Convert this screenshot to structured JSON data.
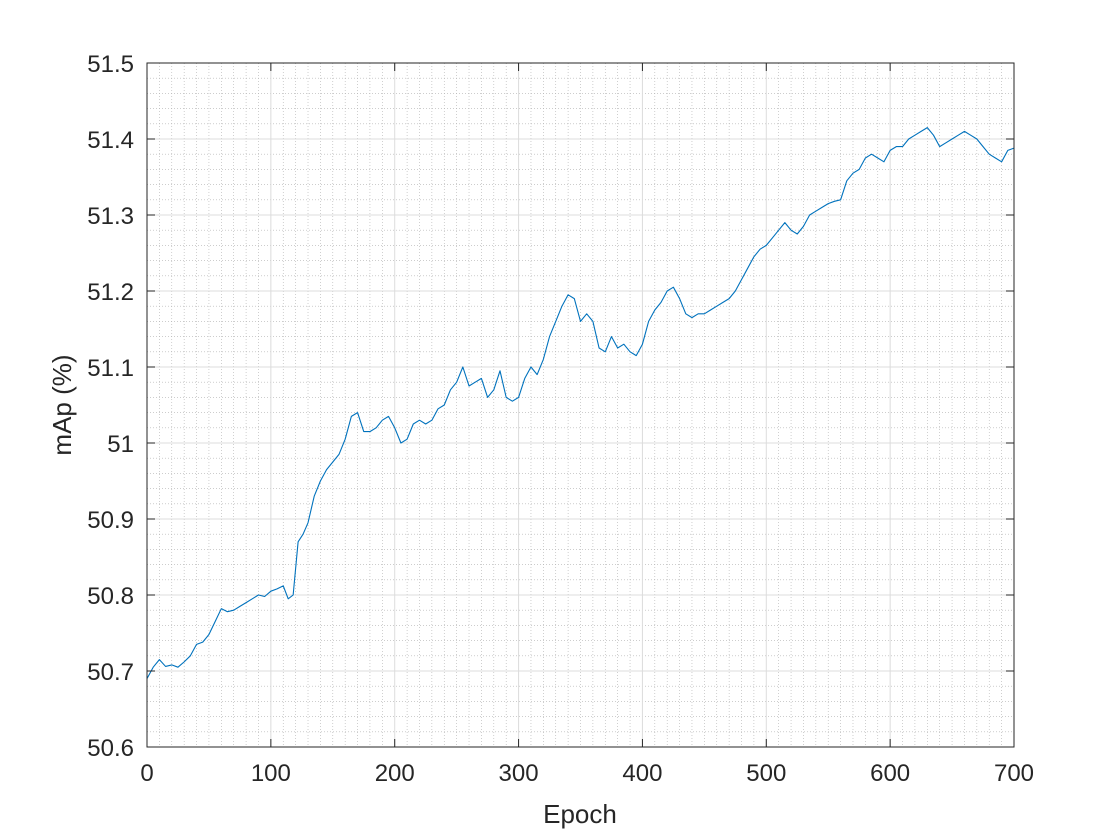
{
  "chart_data": {
    "type": "line",
    "title": "",
    "xlabel": "Epoch",
    "ylabel": "mAp (%)",
    "xlim": [
      0,
      700
    ],
    "ylim": [
      50.6,
      51.5
    ],
    "xticks": [
      0,
      100,
      200,
      300,
      400,
      500,
      600,
      700
    ],
    "yticks": [
      50.6,
      50.7,
      50.8,
      50.9,
      51,
      51.1,
      51.2,
      51.3,
      51.4,
      51.5
    ],
    "xtick_labels": [
      "0",
      "100",
      "200",
      "300",
      "400",
      "500",
      "600",
      "700"
    ],
    "ytick_labels": [
      "50.6",
      "50.7",
      "50.8",
      "50.9",
      "51",
      "51.1",
      "51.2",
      "51.3",
      "51.4",
      "51.5"
    ],
    "grid": true,
    "minor_grid": true,
    "line_color": "#0072BD",
    "series": [
      {
        "x": [
          0,
          5,
          10,
          15,
          20,
          25,
          30,
          35,
          40,
          45,
          50,
          55,
          60,
          65,
          70,
          75,
          80,
          85,
          90,
          95,
          100,
          105,
          110,
          114,
          118,
          122,
          126,
          130,
          135,
          140,
          145,
          150,
          155,
          160,
          165,
          170,
          175,
          180,
          185,
          190,
          195,
          200,
          205,
          210,
          215,
          220,
          225,
          230,
          235,
          240,
          245,
          250,
          255,
          260,
          265,
          270,
          275,
          280,
          285,
          290,
          295,
          300,
          305,
          310,
          315,
          320,
          325,
          330,
          335,
          340,
          345,
          350,
          355,
          360,
          365,
          370,
          375,
          380,
          385,
          390,
          395,
          400,
          405,
          410,
          415,
          420,
          425,
          430,
          435,
          440,
          445,
          450,
          455,
          460,
          465,
          470,
          475,
          480,
          485,
          490,
          495,
          500,
          505,
          510,
          515,
          520,
          525,
          530,
          535,
          540,
          545,
          550,
          555,
          560,
          565,
          570,
          575,
          580,
          585,
          590,
          595,
          600,
          605,
          610,
          615,
          620,
          625,
          630,
          635,
          640,
          645,
          650,
          655,
          660,
          665,
          670,
          675,
          680,
          685,
          690,
          695,
          700
        ],
        "y": [
          50.69,
          50.705,
          50.715,
          50.706,
          50.708,
          50.705,
          50.712,
          50.72,
          50.735,
          50.738,
          50.748,
          50.765,
          50.782,
          50.778,
          50.78,
          50.785,
          50.79,
          50.795,
          50.8,
          50.798,
          50.805,
          50.808,
          50.812,
          50.795,
          50.8,
          50.87,
          50.88,
          50.895,
          50.93,
          50.95,
          50.965,
          50.975,
          50.985,
          51.005,
          51.035,
          51.04,
          51.015,
          51.015,
          51.02,
          51.03,
          51.035,
          51.02,
          51.0,
          51.005,
          51.025,
          51.03,
          51.025,
          51.03,
          51.045,
          51.05,
          51.07,
          51.08,
          51.1,
          51.075,
          51.08,
          51.085,
          51.06,
          51.07,
          51.095,
          51.06,
          51.055,
          51.06,
          51.085,
          51.1,
          51.09,
          51.11,
          51.14,
          51.16,
          51.18,
          51.195,
          51.19,
          51.16,
          51.17,
          51.16,
          51.125,
          51.12,
          51.14,
          51.125,
          51.13,
          51.12,
          51.115,
          51.13,
          51.16,
          51.175,
          51.185,
          51.2,
          51.205,
          51.19,
          51.17,
          51.165,
          51.17,
          51.17,
          51.175,
          51.18,
          51.185,
          51.19,
          51.2,
          51.215,
          51.23,
          51.245,
          51.255,
          51.26,
          51.27,
          51.28,
          51.29,
          51.28,
          51.275,
          51.285,
          51.3,
          51.305,
          51.31,
          51.315,
          51.318,
          51.32,
          51.345,
          51.355,
          51.36,
          51.375,
          51.38,
          51.375,
          51.37,
          51.385,
          51.39,
          51.39,
          51.4,
          51.405,
          51.41,
          51.415,
          51.405,
          51.39,
          51.395,
          51.4,
          51.405,
          51.41,
          51.405,
          51.4,
          51.39,
          51.38,
          51.375,
          51.37,
          51.385,
          51.388
        ]
      }
    ]
  }
}
